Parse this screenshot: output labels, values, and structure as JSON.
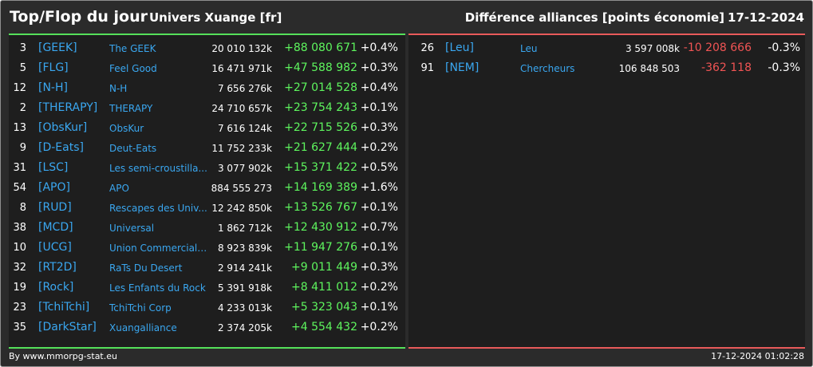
{
  "header": {
    "title": "Top/Flop du jour",
    "universe": "Univers Xuange [fr]",
    "metric": "Différence alliances [points économie]",
    "date": "17-12-2024"
  },
  "colors": {
    "positive": "#5ef55e",
    "negative": "#f05454",
    "link": "#3aa7f0",
    "top_border": "#55e05a",
    "flop_border": "#e85a5a"
  },
  "top": [
    {
      "rank": "3",
      "tag": "[GEEK]",
      "name": "The GEEK",
      "points": "20 010 132k",
      "diff": "+88 080 671",
      "pct": "+0.4%"
    },
    {
      "rank": "5",
      "tag": "[FLG]",
      "name": "Feel Good",
      "points": "16 471 971k",
      "diff": "+47 588 982",
      "pct": "+0.3%"
    },
    {
      "rank": "12",
      "tag": "[N-H]",
      "name": "N-H",
      "points": "7 656 276k",
      "diff": "+27 014 528",
      "pct": "+0.4%"
    },
    {
      "rank": "2",
      "tag": "[THERAPY]",
      "name": "THERAPY",
      "points": "24 710 657k",
      "diff": "+23 754 243",
      "pct": "+0.1%"
    },
    {
      "rank": "13",
      "tag": "[ObsKur]",
      "name": "ObsKur",
      "points": "7 616 124k",
      "diff": "+22 715 526",
      "pct": "+0.3%"
    },
    {
      "rank": "9",
      "tag": "[D-Eats]",
      "name": "Deut-Eats",
      "points": "11 752 233k",
      "diff": "+21 627 444",
      "pct": "+0.2%"
    },
    {
      "rank": "31",
      "tag": "[LSC]",
      "name": "Les semi-croustilla...",
      "points": "3 077 902k",
      "diff": "+15 371 422",
      "pct": "+0.5%"
    },
    {
      "rank": "54",
      "tag": "[APO]",
      "name": "APO",
      "points": "884 555 273",
      "diff": "+14 169 389",
      "pct": "+1.6%"
    },
    {
      "rank": "8",
      "tag": "[RUD]",
      "name": "Rescapes des Univ...",
      "points": "12 242 850k",
      "diff": "+13 526 767",
      "pct": "+0.1%"
    },
    {
      "rank": "38",
      "tag": "[MCD]",
      "name": "Universal",
      "points": "1 862 712k",
      "diff": "+12 430 912",
      "pct": "+0.7%"
    },
    {
      "rank": "10",
      "tag": "[UCG]",
      "name": "Union Commerciale...",
      "points": "8 923 839k",
      "diff": "+11 947 276",
      "pct": "+0.1%"
    },
    {
      "rank": "32",
      "tag": "[RT2D]",
      "name": "RaTs Du Desert",
      "points": "2 914 241k",
      "diff": "+9 011 449",
      "pct": "+0.3%"
    },
    {
      "rank": "19",
      "tag": "[Rock]",
      "name": "Les Enfants du Rock",
      "points": "5 391 918k",
      "diff": "+8 411 012",
      "pct": "+0.2%"
    },
    {
      "rank": "23",
      "tag": "[TchiTchi]",
      "name": "TchiTchi Corp",
      "points": "4 233 013k",
      "diff": "+5 323 043",
      "pct": "+0.1%"
    },
    {
      "rank": "35",
      "tag": "[DarkStar]",
      "name": "Xuangalliance",
      "points": "2 374 205k",
      "diff": "+4 554 432",
      "pct": "+0.2%"
    }
  ],
  "flop": [
    {
      "rank": "26",
      "tag": "[Leu]",
      "name": "Leu",
      "points": "3 597 008k",
      "diff": "-10 208 666",
      "pct": "-0.3%"
    },
    {
      "rank": "91",
      "tag": "[NEM]",
      "name": "Chercheurs",
      "points": "106 848 503",
      "diff": "-362 118",
      "pct": "-0.3%"
    }
  ],
  "footer": {
    "credit": "By www.mmorpg-stat.eu",
    "timestamp": "17-12-2024 01:02:28"
  }
}
